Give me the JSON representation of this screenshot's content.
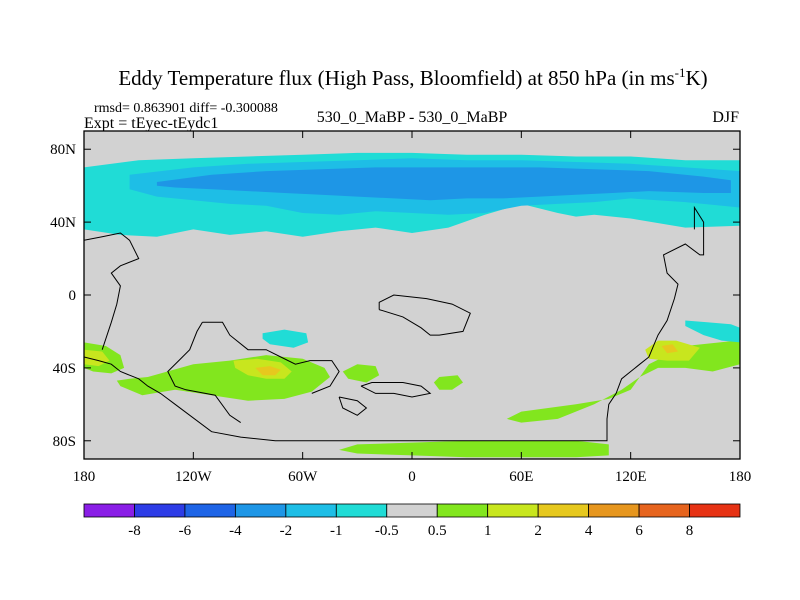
{
  "chart_data": {
    "type": "heatmap",
    "title_main": "Eddy Temperature flux (High Pass, Bloomfield) at 850 hPa (in ms",
    "title_sup": "-1",
    "title_end": "K)",
    "subtitle_left_1": "rmsd= 0.863901 diff= -0.300088",
    "subtitle_left_2": "Expt = tEyec-tEydc1",
    "subtitle_center": "530_0_MaBP - 530_0_MaBP",
    "subtitle_right": "DJF",
    "x_range": [
      -180,
      180
    ],
    "y_range": [
      -90,
      90
    ],
    "x_ticks": [
      {
        "value": -180,
        "label": "180"
      },
      {
        "value": -120,
        "label": "120W"
      },
      {
        "value": -60,
        "label": "60W"
      },
      {
        "value": 0,
        "label": "0"
      },
      {
        "value": 60,
        "label": "60E"
      },
      {
        "value": 120,
        "label": "120E"
      },
      {
        "value": 180,
        "label": "180"
      }
    ],
    "y_ticks": [
      {
        "value": 80,
        "label": "80N"
      },
      {
        "value": 40,
        "label": "40N"
      },
      {
        "value": 0,
        "label": "0"
      },
      {
        "value": -40,
        "label": "40S"
      },
      {
        "value": -80,
        "label": "80S"
      }
    ],
    "colorbar": {
      "labels": [
        "-8",
        "-6",
        "-4",
        "-2",
        "-1",
        "-0.5",
        "0.5",
        "1",
        "2",
        "4",
        "6",
        "8"
      ],
      "colors": [
        "#8a1ee6",
        "#2d3ce6",
        "#1e64e6",
        "#1e96e6",
        "#1ebee6",
        "#20dcd6",
        "#d2d2d2",
        "#82e61e",
        "#c8e61e",
        "#e6c81e",
        "#e6961e",
        "#e6641e",
        "#e63214"
      ]
    },
    "regions": [
      {
        "name": "arctic-band-light",
        "level": "-1 to -0.5",
        "color": "#20dcd6",
        "lon": [
          -180,
          -150,
          -120,
          -90,
          -60,
          -30,
          0,
          30,
          60,
          90,
          120,
          150,
          180,
          180,
          150,
          120,
          100,
          90,
          80,
          60,
          40,
          20,
          0,
          -20,
          -40,
          -60,
          -80,
          -100,
          -120,
          -140,
          -160,
          -180
        ],
        "lat": [
          70,
          74,
          75,
          76,
          77,
          78,
          78,
          77,
          77,
          76,
          76,
          74,
          74,
          38,
          37,
          42,
          44,
          43,
          45,
          50,
          44,
          37,
          34,
          37,
          35,
          32,
          35,
          33,
          36,
          32,
          33,
          36
        ]
      },
      {
        "name": "arctic-band-mid",
        "level": "-2 to -1",
        "color": "#1ebee6",
        "lon": [
          -155,
          -120,
          -90,
          -60,
          -30,
          0,
          30,
          60,
          90,
          120,
          150,
          180,
          180,
          150,
          120,
          100,
          80,
          60,
          40,
          20,
          0,
          -20,
          -40,
          -60,
          -80,
          -100,
          -120,
          -140,
          -155
        ],
        "lat": [
          66,
          70,
          72,
          73,
          74,
          75,
          74,
          74,
          73,
          72,
          70,
          68,
          48,
          51,
          53,
          51,
          50,
          49,
          45,
          44,
          45,
          46,
          44,
          45,
          49,
          50,
          52,
          54,
          58
        ]
      },
      {
        "name": "arctic-band-dark",
        "level": "-4 to -2",
        "color": "#1e96e6",
        "lon": [
          -140,
          -110,
          -80,
          -50,
          -20,
          10,
          40,
          70,
          100,
          130,
          160,
          175,
          175,
          160,
          130,
          110,
          90,
          70,
          50,
          30,
          10,
          -10,
          -30,
          -50,
          -70,
          -90,
          -110,
          -130,
          -140
        ],
        "lat": [
          62,
          66,
          68,
          69,
          70,
          70,
          70,
          70,
          69,
          68,
          65,
          63,
          56,
          56,
          57,
          56,
          55,
          54,
          53,
          53,
          52,
          53,
          54,
          55,
          56,
          57,
          58,
          59,
          60
        ]
      },
      {
        "name": "s-pacific-green",
        "level": "0.5 to 1",
        "color": "#82e61e",
        "lon": [
          -145,
          -120,
          -100,
          -80,
          -60,
          -48,
          -45,
          -55,
          -70,
          -90,
          -110,
          -130,
          -148,
          -160,
          -162,
          -155,
          -145
        ],
        "lat": [
          -45,
          -38,
          -36,
          -33,
          -35,
          -40,
          -45,
          -53,
          -57,
          -58,
          -55,
          -52,
          -55,
          -50,
          -47,
          -46,
          -45
        ]
      },
      {
        "name": "s-pacific-yellow",
        "level": "1 to 2",
        "color": "#c8e61e",
        "lon": [
          -98,
          -85,
          -72,
          -66,
          -70,
          -80,
          -90,
          -97,
          -98
        ],
        "lat": [
          -36,
          -35,
          -37,
          -42,
          -46,
          -46,
          -44,
          -40,
          -36
        ]
      },
      {
        "name": "s-pacific-orange",
        "level": "2 to 4",
        "color": "#e6c81e",
        "lon": [
          -86,
          -78,
          -72,
          -75,
          -82,
          -86
        ],
        "lat": [
          -40,
          -39,
          -41,
          -44,
          -44,
          -40
        ]
      },
      {
        "name": "mid-pacific-cyan",
        "level": "-1 to -0.5",
        "color": "#20dcd6",
        "lon": [
          -82,
          -70,
          -58,
          -57,
          -65,
          -78,
          -82
        ],
        "lat": [
          -21,
          -19,
          -21,
          -26,
          -29,
          -27,
          -24
        ]
      },
      {
        "name": "w-edge-green",
        "level": "0.5 to 1",
        "color": "#82e61e",
        "lon": [
          -180,
          -168,
          -160,
          -158,
          -165,
          -175,
          -180
        ],
        "lat": [
          -26,
          -28,
          -33,
          -40,
          -43,
          -42,
          -40
        ]
      },
      {
        "name": "w-edge-yellow",
        "level": "1 to 2",
        "color": "#c8e61e",
        "lon": [
          -180,
          -170,
          -166,
          -172,
          -180
        ],
        "lat": [
          -30,
          -31,
          -36,
          -39,
          -38
        ]
      },
      {
        "name": "s-america-green",
        "level": "0.5 to 1",
        "color": "#82e61e",
        "lon": [
          -30,
          -20,
          -18,
          -25,
          -35,
          -38,
          -30
        ],
        "lat": [
          -38,
          -39,
          -44,
          -48,
          -46,
          -42,
          -38
        ]
      },
      {
        "name": "s-atlantic-green",
        "level": "0.5 to 1",
        "color": "#82e61e",
        "lon": [
          15,
          25,
          28,
          22,
          15,
          12,
          15
        ],
        "lat": [
          -45,
          -44,
          -48,
          -52,
          -52,
          -48,
          -45
        ]
      },
      {
        "name": "s-ocean-green",
        "level": "0.5 to 1",
        "color": "#82e61e",
        "lon": [
          60,
          90,
          108,
          120,
          130,
          150,
          178,
          180,
          180,
          165,
          150,
          135,
          125,
          115,
          100,
          80,
          60,
          52,
          60
        ],
        "lat": [
          -64,
          -60,
          -57,
          -52,
          -38,
          -28,
          -25,
          -24,
          -38,
          -42,
          -40,
          -40,
          -45,
          -52,
          -60,
          -68,
          -70,
          -68,
          -64
        ]
      },
      {
        "name": "s-ocean-yellow",
        "level": "1 to 2",
        "color": "#c8e61e",
        "lon": [
          128,
          135,
          145,
          158,
          152,
          140,
          130,
          128
        ],
        "lat": [
          -30,
          -25,
          -25,
          -29,
          -36,
          -36,
          -35,
          -30
        ]
      },
      {
        "name": "s-ocean-orange",
        "level": "2 to 4",
        "color": "#e6c81e",
        "lon": [
          137,
          143,
          146,
          140,
          137
        ],
        "lat": [
          -28,
          -27,
          -31,
          -32,
          -28
        ]
      },
      {
        "name": "e-pacific-cyan",
        "level": "-1 to -0.5",
        "color": "#20dcd6",
        "lon": [
          150,
          162,
          175,
          180,
          180,
          170,
          160,
          150
        ],
        "lat": [
          -14,
          -15,
          -16,
          -18,
          -26,
          -25,
          -22,
          -17
        ]
      },
      {
        "name": "antarctic-green",
        "level": "0.5 to 1",
        "color": "#82e61e",
        "lon": [
          -30,
          0,
          30,
          60,
          90,
          108,
          108,
          90,
          60,
          30,
          0,
          -30,
          -40,
          -30
        ],
        "lat": [
          -82,
          -81,
          -80,
          -80,
          -80,
          -82,
          -88,
          -89,
          -89,
          -89,
          -88,
          -87,
          -85,
          -82
        ]
      }
    ],
    "coastlines": [
      [
        [
          -180,
          -34
        ],
        [
          -172,
          -36
        ],
        [
          -165,
          -38
        ],
        [
          -160,
          -42
        ],
        [
          -155,
          -44
        ],
        [
          -150,
          -46
        ],
        [
          -145,
          -50
        ],
        [
          -138,
          -54
        ],
        [
          -130,
          -60
        ],
        [
          -110,
          -75
        ],
        [
          -94,
          -78
        ],
        [
          -75,
          -80
        ],
        [
          -35,
          -80
        ],
        [
          0,
          -80
        ],
        [
          50,
          -80
        ],
        [
          90,
          -80
        ],
        [
          107,
          -80
        ],
        [
          107,
          -68
        ],
        [
          108,
          -60
        ],
        [
          112,
          -54
        ],
        [
          115,
          -46
        ],
        [
          120,
          -42
        ],
        [
          125,
          -38
        ],
        [
          130,
          -34
        ],
        [
          135,
          -22
        ],
        [
          140,
          -14
        ],
        [
          144,
          -2
        ],
        [
          146,
          6
        ],
        [
          140,
          12
        ],
        [
          138,
          22
        ],
        [
          150,
          28
        ],
        [
          158,
          22
        ],
        [
          160,
          22
        ],
        [
          160,
          40
        ],
        [
          155,
          48
        ],
        [
          155,
          36
        ]
      ],
      [
        [
          -180,
          30
        ],
        [
          -170,
          32
        ],
        [
          -160,
          34
        ],
        [
          -155,
          30
        ],
        [
          -150,
          20
        ],
        [
          -160,
          16
        ],
        [
          -165,
          12
        ],
        [
          -160,
          5
        ],
        [
          -162,
          -5
        ],
        [
          -165,
          -15
        ],
        [
          -170,
          -30
        ]
      ],
      [
        [
          -115,
          -15
        ],
        [
          -104,
          -15
        ],
        [
          -100,
          -22
        ],
        [
          -90,
          -30
        ],
        [
          -80,
          -30
        ],
        [
          -72,
          -34
        ],
        [
          -64,
          -38
        ],
        [
          -56,
          -36
        ],
        [
          -44,
          -36
        ],
        [
          -40,
          -42
        ],
        [
          -45,
          -50
        ],
        [
          -55,
          -54
        ]
      ],
      [
        [
          -115,
          -15
        ],
        [
          -118,
          -20
        ],
        [
          -122,
          -30
        ],
        [
          -128,
          -36
        ],
        [
          -134,
          -42
        ],
        [
          -130,
          -50
        ],
        [
          -124,
          -52
        ],
        [
          -108,
          -55
        ],
        [
          -100,
          -66
        ],
        [
          -94,
          -70
        ]
      ],
      [
        [
          -18,
          -8
        ],
        [
          -5,
          -12
        ],
        [
          5,
          -18
        ],
        [
          10,
          -22
        ],
        [
          15,
          -22
        ],
        [
          28,
          -20
        ],
        [
          32,
          -10
        ],
        [
          22,
          -5
        ],
        [
          8,
          -2
        ],
        [
          -10,
          0
        ],
        [
          -18,
          -4
        ],
        [
          -18,
          -8
        ]
      ],
      [
        [
          -28,
          -50
        ],
        [
          -22,
          -48
        ],
        [
          -5,
          -48
        ],
        [
          5,
          -50
        ],
        [
          10,
          -54
        ],
        [
          0,
          -56
        ],
        [
          -10,
          -54
        ],
        [
          -20,
          -54
        ],
        [
          -28,
          -50
        ]
      ],
      [
        [
          -40,
          -56
        ],
        [
          -30,
          -58
        ],
        [
          -25,
          -62
        ],
        [
          -30,
          -66
        ],
        [
          -38,
          -62
        ],
        [
          -40,
          -56
        ]
      ]
    ]
  }
}
